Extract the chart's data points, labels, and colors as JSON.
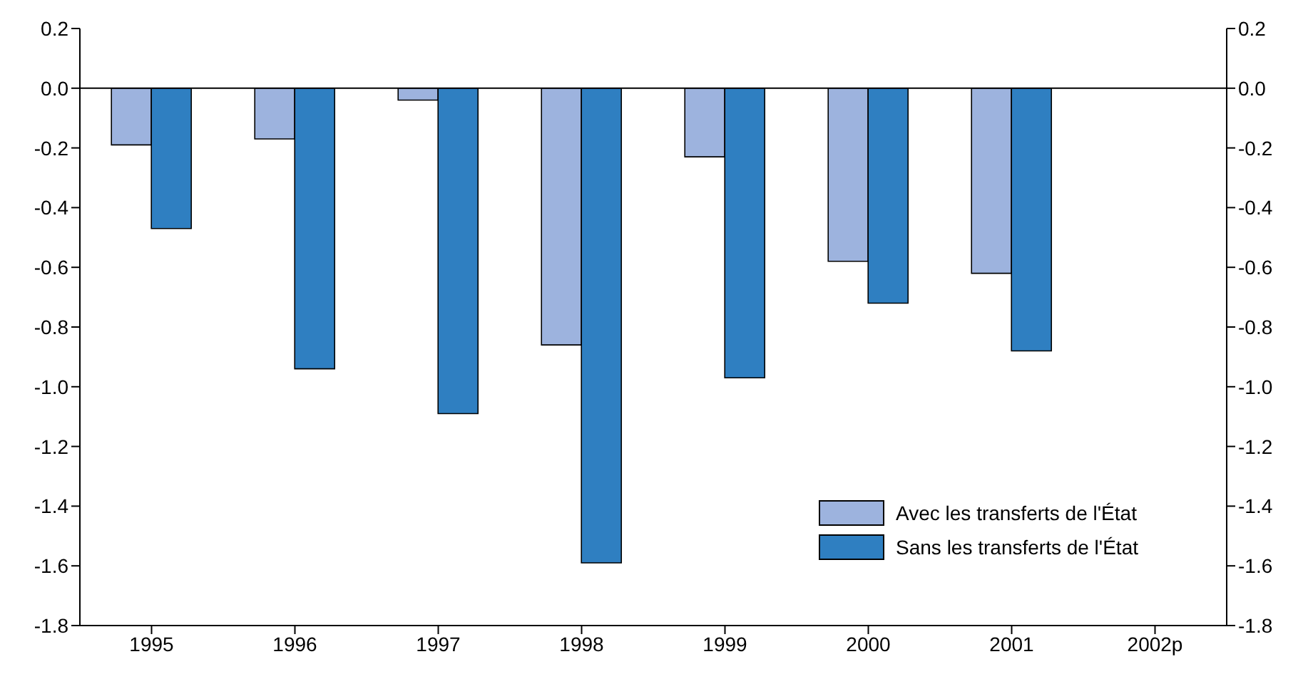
{
  "chart_data": {
    "type": "bar",
    "categories": [
      "1995",
      "1996",
      "1997",
      "1998",
      "1999",
      "2000",
      "2001",
      "2002p"
    ],
    "series": [
      {
        "name": "Avec les transferts de l'État",
        "color": "#9db3de",
        "values": [
          -0.19,
          -0.17,
          -0.04,
          -0.86,
          -0.23,
          -0.58,
          -0.62,
          null
        ]
      },
      {
        "name": "Sans les transferts de l'État",
        "color": "#2f7fc1",
        "values": [
          -0.47,
          -0.94,
          -1.09,
          -1.59,
          -0.97,
          -0.72,
          -0.88,
          null
        ]
      }
    ],
    "ylim": [
      -1.8,
      0.2
    ],
    "yticks": [
      {
        "value": 0.2,
        "label": "0.2"
      },
      {
        "value": 0,
        "label": "0.0"
      },
      {
        "value": -0.2,
        "label": "-0.2"
      },
      {
        "value": -0.4,
        "label": "-0.4"
      },
      {
        "value": -0.6,
        "label": "-0.6"
      },
      {
        "value": -0.8,
        "label": "-0.8"
      },
      {
        "value": -1,
        "label": "-1.0"
      },
      {
        "value": -1.2,
        "label": "-1.2"
      },
      {
        "value": -1.4,
        "label": "-1.4"
      },
      {
        "value": -1.6,
        "label": "-1.6"
      },
      {
        "value": -1.8,
        "label": "-1.8"
      }
    ],
    "y2lim": [
      -1.8,
      0.2
    ],
    "y2ticks": [
      {
        "value": 0.2,
        "label": "0.2"
      },
      {
        "value": 0,
        "label": "0.0"
      },
      {
        "value": -0.2,
        "label": "-0.2"
      },
      {
        "value": -0.4,
        "label": "-0.4"
      },
      {
        "value": -0.6,
        "label": "-0.6"
      },
      {
        "value": -0.8,
        "label": "-0.8"
      },
      {
        "value": -1,
        "label": "-1.0"
      },
      {
        "value": -1.2,
        "label": "-1.2"
      },
      {
        "value": -1.4,
        "label": "-1.4"
      },
      {
        "value": -1.6,
        "label": "-1.6"
      },
      {
        "value": -1.8,
        "label": "-1.8"
      }
    ],
    "ref_lines": [
      {
        "axis": "y",
        "value": 0,
        "color": "#000000"
      }
    ],
    "grid": false,
    "legend": "bottom right"
  }
}
